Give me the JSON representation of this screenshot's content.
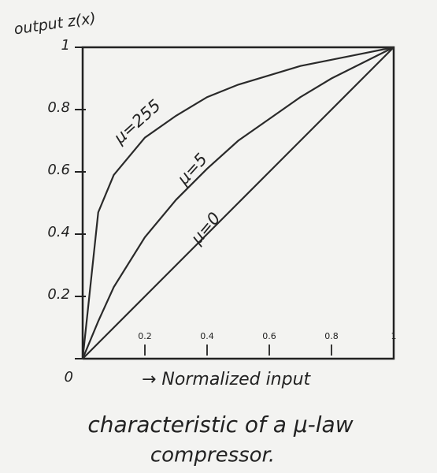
{
  "chart_data": {
    "type": "line",
    "ylabel": "output z(x)",
    "xlabel": "→ Normalized input",
    "caption": [
      "characteristic of a μ-law",
      "compressor."
    ],
    "x": [
      0,
      0.05,
      0.1,
      0.2,
      0.3,
      0.4,
      0.5,
      0.6,
      0.7,
      0.8,
      0.9,
      1
    ],
    "series": [
      {
        "name": "μ=255",
        "color": "#2a2a2a",
        "values": [
          0,
          0.47,
          0.59,
          0.71,
          0.78,
          0.84,
          0.88,
          0.91,
          0.94,
          0.96,
          0.98,
          1
        ]
      },
      {
        "name": "μ=5",
        "color": "#2a2a2a",
        "values": [
          0,
          0.12,
          0.23,
          0.39,
          0.51,
          0.61,
          0.7,
          0.77,
          0.84,
          0.9,
          0.95,
          1
        ]
      },
      {
        "name": "μ=0",
        "color": "#2a2a2a",
        "values": [
          0,
          0.05,
          0.1,
          0.2,
          0.3,
          0.4,
          0.5,
          0.6,
          0.7,
          0.8,
          0.9,
          1
        ]
      }
    ],
    "xlim": [
      0,
      1
    ],
    "ylim": [
      0,
      1
    ],
    "xticks": [
      0.2,
      0.4,
      0.6,
      0.8,
      1
    ],
    "yticks": [
      0,
      0.2,
      0.4,
      0.6,
      0.8,
      1
    ]
  }
}
